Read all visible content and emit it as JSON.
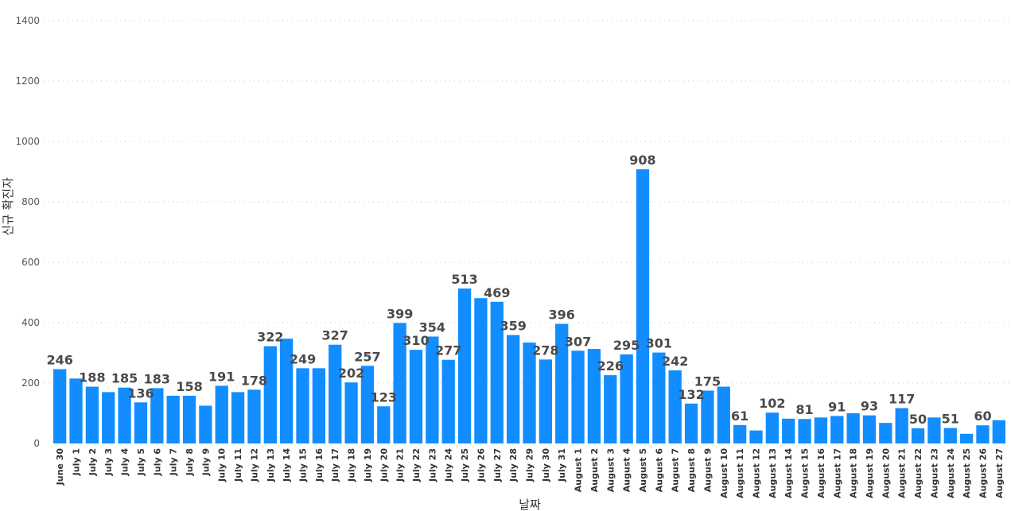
{
  "chart_data": {
    "type": "bar",
    "xlabel": "날짜",
    "ylabel": "신규 확진자",
    "ylim": [
      0,
      1400
    ],
    "yticks": [
      0,
      200,
      400,
      600,
      800,
      1000,
      1200,
      1400
    ],
    "grid": true,
    "bar_color": "#118dff",
    "categories": [
      "June 30",
      "July 1",
      "July 2",
      "July 3",
      "July 4",
      "July 5",
      "July 6",
      "July 7",
      "July 8",
      "July 9",
      "July 10",
      "July 11",
      "July 12",
      "July 13",
      "July 14",
      "July 15",
      "July 16",
      "July 17",
      "July 18",
      "July 19",
      "July 20",
      "July 21",
      "July 22",
      "July 23",
      "July 24",
      "July 25",
      "July 26",
      "July 27",
      "July 28",
      "July 29",
      "July 30",
      "July 31",
      "August 1",
      "August 2",
      "August 3",
      "August 4",
      "August 5",
      "August 6",
      "August 7",
      "August 8",
      "August 9",
      "August 10",
      "August 11",
      "August 12",
      "August 13",
      "August 14",
      "August 15",
      "August 16",
      "August 17",
      "August 18",
      "August 19",
      "August 20",
      "August 21",
      "August 22",
      "August 23",
      "August 24",
      "August 25",
      "August 26",
      "August 27"
    ],
    "values": [
      246,
      215,
      188,
      170,
      185,
      136,
      183,
      158,
      158,
      125,
      191,
      170,
      178,
      322,
      347,
      249,
      249,
      327,
      202,
      257,
      123,
      399,
      310,
      354,
      277,
      513,
      481,
      469,
      359,
      334,
      278,
      396,
      307,
      313,
      226,
      295,
      908,
      301,
      242,
      132,
      175,
      188,
      61,
      43,
      102,
      82,
      81,
      86,
      91,
      100,
      93,
      68,
      117,
      50,
      86,
      51,
      32,
      60,
      77
    ],
    "data_labels": [
      {
        "index": 0,
        "text": "246"
      },
      {
        "index": 2,
        "text": "188"
      },
      {
        "index": 4,
        "text": "185"
      },
      {
        "index": 5,
        "text": "136"
      },
      {
        "index": 6,
        "text": "183"
      },
      {
        "index": 8,
        "text": "158"
      },
      {
        "index": 10,
        "text": "191"
      },
      {
        "index": 12,
        "text": "178"
      },
      {
        "index": 13,
        "text": "322"
      },
      {
        "index": 15,
        "text": "249"
      },
      {
        "index": 17,
        "text": "327"
      },
      {
        "index": 18,
        "text": "202"
      },
      {
        "index": 19,
        "text": "257"
      },
      {
        "index": 20,
        "text": "123"
      },
      {
        "index": 21,
        "text": "399"
      },
      {
        "index": 22,
        "text": "310"
      },
      {
        "index": 23,
        "text": "354"
      },
      {
        "index": 24,
        "text": "277"
      },
      {
        "index": 25,
        "text": "513"
      },
      {
        "index": 27,
        "text": "469"
      },
      {
        "index": 28,
        "text": "359"
      },
      {
        "index": 30,
        "text": "278"
      },
      {
        "index": 31,
        "text": "396"
      },
      {
        "index": 32,
        "text": "307"
      },
      {
        "index": 34,
        "text": "226"
      },
      {
        "index": 35,
        "text": "295"
      },
      {
        "index": 36,
        "text": "908"
      },
      {
        "index": 37,
        "text": "301"
      },
      {
        "index": 38,
        "text": "242"
      },
      {
        "index": 39,
        "text": "132"
      },
      {
        "index": 40,
        "text": "175"
      },
      {
        "index": 42,
        "text": "61"
      },
      {
        "index": 44,
        "text": "102"
      },
      {
        "index": 46,
        "text": "81"
      },
      {
        "index": 48,
        "text": "91"
      },
      {
        "index": 50,
        "text": "93"
      },
      {
        "index": 52,
        "text": "117"
      },
      {
        "index": 53,
        "text": "50"
      },
      {
        "index": 55,
        "text": "51"
      },
      {
        "index": 57,
        "text": "60"
      }
    ]
  }
}
